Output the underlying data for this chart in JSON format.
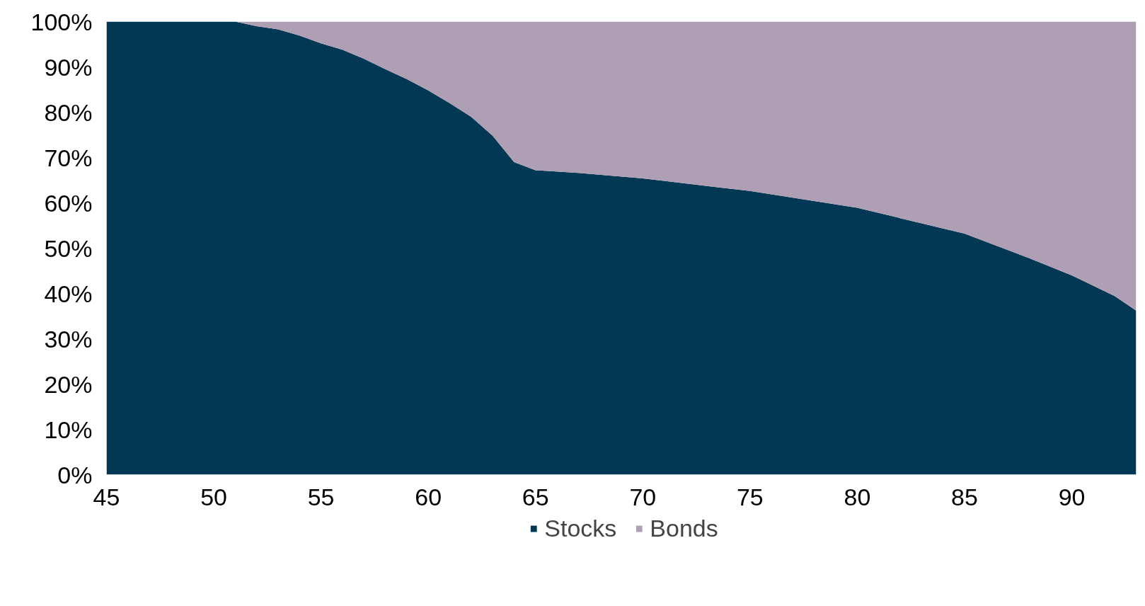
{
  "chart_data": {
    "type": "area",
    "stacked": true,
    "x": [
      45,
      50,
      51,
      52,
      53,
      54,
      55,
      56,
      57,
      58,
      59,
      60,
      61,
      62,
      63,
      64,
      65,
      67,
      70,
      75,
      80,
      85,
      88,
      90,
      92,
      93
    ],
    "series": [
      {
        "name": "Stocks",
        "color": "#023854",
        "values": [
          100,
          100,
          100,
          99,
          98.3,
          96.9,
          95.2,
          93.8,
          91.8,
          89.5,
          87.3,
          84.8,
          82,
          79,
          74.8,
          69,
          67.2,
          66.6,
          65.4,
          62.6,
          58.9,
          53.2,
          47.8,
          44,
          39.4,
          36.2
        ]
      },
      {
        "name": "Bonds",
        "color": "#ae9fb4",
        "values": [
          0,
          0,
          0,
          1,
          1.7,
          3.1,
          4.8,
          6.2,
          8.2,
          10.5,
          12.7,
          15.2,
          18,
          21,
          25.2,
          31,
          32.8,
          33.4,
          34.6,
          37.4,
          41.1,
          46.8,
          52.2,
          56,
          60.6,
          63.8
        ]
      }
    ],
    "xlim": [
      45,
      93
    ],
    "ylim": [
      0,
      100
    ],
    "xticks": [
      45,
      50,
      55,
      60,
      65,
      70,
      75,
      80,
      85,
      90
    ],
    "yticks": [
      {
        "value": 0,
        "label": "0%"
      },
      {
        "value": 10,
        "label": "10%"
      },
      {
        "value": 20,
        "label": "20%"
      },
      {
        "value": 30,
        "label": "30%"
      },
      {
        "value": 40,
        "label": "40%"
      },
      {
        "value": 50,
        "label": "50%"
      },
      {
        "value": 60,
        "label": "60%"
      },
      {
        "value": 70,
        "label": "70%"
      },
      {
        "value": 80,
        "label": "80%"
      },
      {
        "value": 90,
        "label": "90%"
      },
      {
        "value": 100,
        "label": "100%"
      }
    ],
    "grid": false,
    "legend": "bottom"
  }
}
